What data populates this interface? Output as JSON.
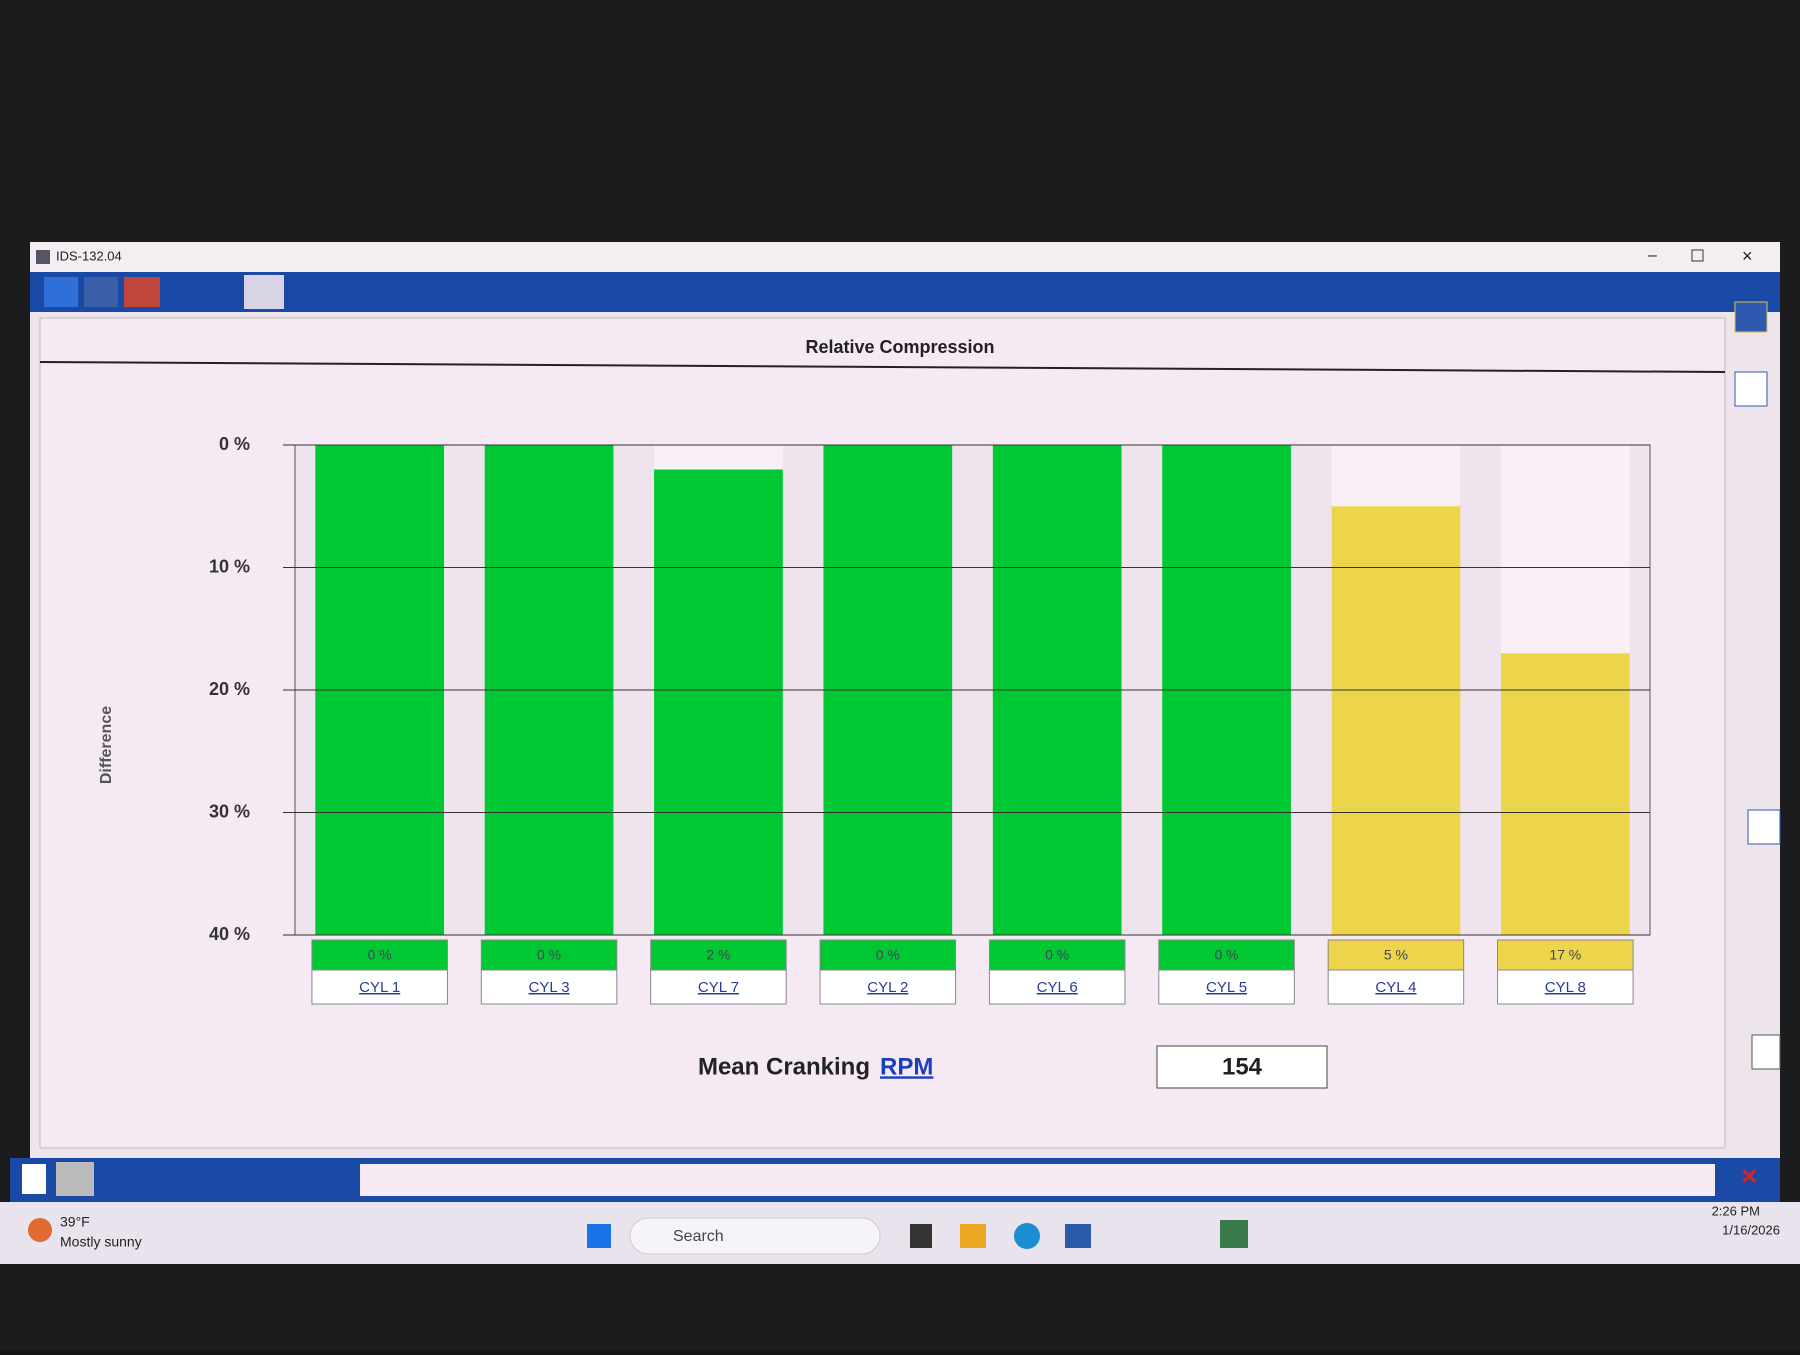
{
  "window": {
    "title": "IDS-132.04"
  },
  "chart_data": {
    "type": "bar",
    "title": "Relative Compression",
    "y_label": "Difference",
    "categories": [
      "CYL 1",
      "CYL 3",
      "CYL 7",
      "CYL 2",
      "CYL 6",
      "CYL 5",
      "CYL 4",
      "CYL 8"
    ],
    "values": [
      0,
      0,
      2,
      0,
      0,
      0,
      5,
      17
    ],
    "value_labels": [
      "0 %",
      "0 %",
      "2 %",
      "0 %",
      "0 %",
      "0 %",
      "5 %",
      "17 %"
    ],
    "colors": [
      "#00c832",
      "#00c832",
      "#00c832",
      "#00c832",
      "#00c832",
      "#00c832",
      "#ecd54a",
      "#ecd54a"
    ],
    "ylim": [
      0,
      40
    ],
    "y_inverted": true,
    "yticks": [
      {
        "value": 0,
        "label": "0 %"
      },
      {
        "value": 10,
        "label": "10 %"
      },
      {
        "value": 20,
        "label": "20 %"
      },
      {
        "value": 30,
        "label": "30 %"
      },
      {
        "value": 40,
        "label": "40 %"
      }
    ],
    "grid": true
  },
  "mean_rpm": {
    "label": "Mean Cranking",
    "link": "RPM",
    "value": 154
  },
  "taskbar": {
    "weather_temp": "39°F",
    "weather_text": "Mostly sunny",
    "search": "Search",
    "time": "2:26 PM",
    "date": "1/16/2026"
  }
}
